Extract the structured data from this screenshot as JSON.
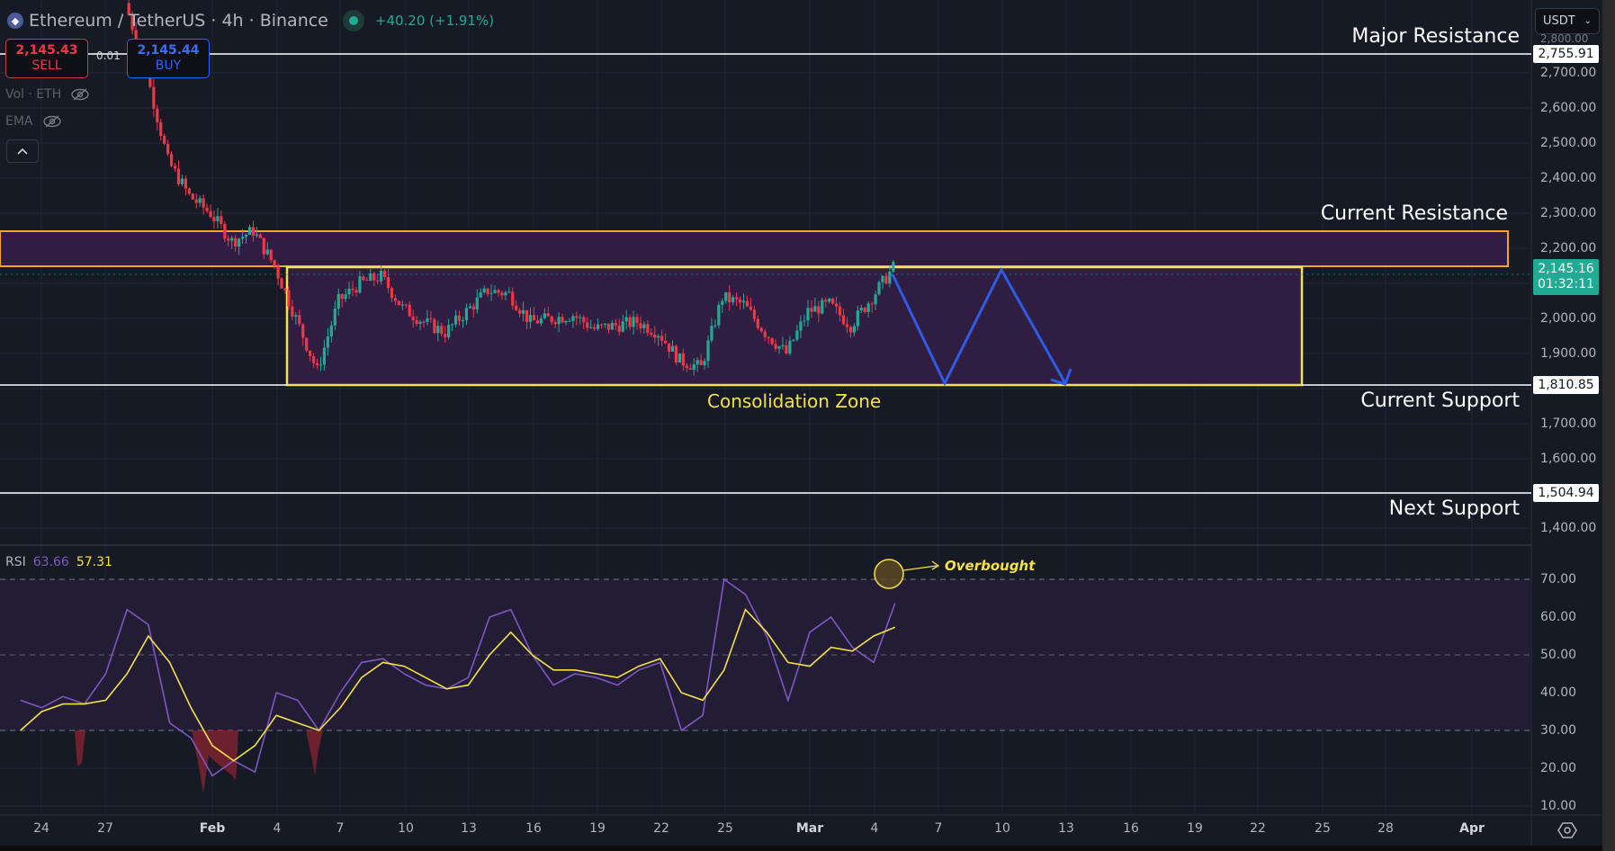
{
  "header": {
    "symbol": "Ethereum / TetherUS · 4h · Binance",
    "change": "+40.20 (+1.91%)",
    "market_status": "open"
  },
  "trade": {
    "sell_price": "2,145.43",
    "sell_label": "SELL",
    "spread": "0.01",
    "buy_price": "2,145.44",
    "buy_label": "BUY"
  },
  "indicators": {
    "vol_label": "Vol · ETH",
    "ema_label": "EMA",
    "collapse_icon": "chevron-up-icon"
  },
  "currency": {
    "selected": "USDT"
  },
  "price_axis": {
    "ticks": [
      "2,700.00",
      "2,600.00",
      "2,500.00",
      "2,400.00",
      "2,300.00",
      "2,200.00",
      "2,000.00",
      "1,900.00",
      "1,700.00",
      "1,600.00",
      "1,400.00"
    ],
    "tags": {
      "major_resistance": "2,755.91",
      "current_support": "1,810.85",
      "next_support": "1,504.94"
    },
    "last_price": "2,145.16",
    "countdown": "01:32:11"
  },
  "annotations": {
    "major_resistance": "Major Resistance",
    "current_resistance": "Current Resistance",
    "current_support": "Current Support",
    "next_support": "Next Support",
    "consolidation": "Consolidation Zone",
    "overbought": "Overbought"
  },
  "rsi": {
    "label": "RSI",
    "value": "63.66",
    "ma_value": "57.31",
    "ticks": [
      "70.00",
      "60.00",
      "50.00",
      "40.00",
      "30.00",
      "20.00",
      "10.00"
    ]
  },
  "time_axis": {
    "labels": [
      "24",
      "27",
      "Feb",
      "4",
      "7",
      "10",
      "13",
      "16",
      "19",
      "22",
      "25",
      "Mar",
      "4",
      "7",
      "10",
      "13",
      "16",
      "19",
      "22",
      "25",
      "28",
      "Apr"
    ]
  },
  "colors": {
    "background": "#161a25",
    "up": "#22ab94",
    "down": "#f23645",
    "rsi_line": "#7e57c2",
    "rsi_ma": "#f5e14a",
    "resistance_zone_border": "#f5a623",
    "consolidation_border": "#f5e14a",
    "zone_fill": "#311d44",
    "projection": "#2e5ce6"
  },
  "chart_data": [
    {
      "type": "candlestick",
      "title": "Ethereum / TetherUS · 4h · Binance",
      "xlabel": "",
      "ylabel": "USDT",
      "x_ticks": [
        "24",
        "27",
        "Feb",
        "4",
        "7",
        "10",
        "13",
        "16",
        "19",
        "22",
        "25",
        "Mar",
        "4",
        "7",
        "10",
        "13",
        "16",
        "19",
        "22",
        "25",
        "28",
        "Apr"
      ],
      "ylim": [
        1350,
        2800
      ],
      "last_price": 2145.16,
      "approx_path": [
        {
          "date": "Jan 28",
          "close": 2900
        },
        {
          "date": "Jan 29",
          "close": 2700
        },
        {
          "date": "Jan 30",
          "close": 2450
        },
        {
          "date": "Jan 31",
          "close": 2350
        },
        {
          "date": "Feb 1",
          "close": 2300
        },
        {
          "date": "Feb 2",
          "close": 2220
        },
        {
          "date": "Feb 3",
          "close": 2250
        },
        {
          "date": "Feb 4",
          "close": 2150
        },
        {
          "date": "Feb 5",
          "close": 2000
        },
        {
          "date": "Feb 6",
          "close": 1850
        },
        {
          "date": "Feb 7",
          "close": 2050
        },
        {
          "date": "Feb 8",
          "close": 2100
        },
        {
          "date": "Feb 9",
          "close": 2120
        },
        {
          "date": "Feb 10",
          "close": 2030
        },
        {
          "date": "Feb 11",
          "close": 1990
        },
        {
          "date": "Feb 12",
          "close": 1960
        },
        {
          "date": "Feb 13",
          "close": 2020
        },
        {
          "date": "Feb 14",
          "close": 2080
        },
        {
          "date": "Feb 15",
          "close": 2070
        },
        {
          "date": "Feb 16",
          "close": 1990
        },
        {
          "date": "Feb 17",
          "close": 2000
        },
        {
          "date": "Feb 18",
          "close": 2010
        },
        {
          "date": "Feb 19",
          "close": 1970
        },
        {
          "date": "Feb 20",
          "close": 1980
        },
        {
          "date": "Feb 21",
          "close": 1990
        },
        {
          "date": "Feb 22",
          "close": 1960
        },
        {
          "date": "Feb 23",
          "close": 1880
        },
        {
          "date": "Feb 24",
          "close": 1860
        },
        {
          "date": "Feb 25",
          "close": 2060
        },
        {
          "date": "Feb 26",
          "close": 2040
        },
        {
          "date": "Feb 27",
          "close": 1960
        },
        {
          "date": "Feb 28",
          "close": 1900
        },
        {
          "date": "Mar 1",
          "close": 2020
        },
        {
          "date": "Mar 2",
          "close": 2040
        },
        {
          "date": "Mar 3",
          "close": 1980
        },
        {
          "date": "Mar 4",
          "close": 2060
        },
        {
          "date": "Mar 5",
          "close": 2145
        }
      ],
      "levels": [
        {
          "name": "Major Resistance",
          "price": 2755.91
        },
        {
          "name": "Current Resistance zone",
          "from": 2150,
          "to": 2250
        },
        {
          "name": "Consolidation Zone",
          "from": 1810.85,
          "to": 2150
        },
        {
          "name": "Current Support",
          "price": 1810.85
        },
        {
          "name": "Next Support",
          "price": 1504.94
        }
      ],
      "projection": [
        {
          "date": "Mar 5",
          "price": 2140
        },
        {
          "date": "Mar 7",
          "price": 1810
        },
        {
          "date": "Mar 10",
          "price": 2140
        },
        {
          "date": "Mar 13",
          "price": 1810
        }
      ]
    },
    {
      "type": "line",
      "title": "RSI",
      "ylim": [
        5,
        78
      ],
      "y_ticks": [
        70,
        60,
        50,
        40,
        30,
        20,
        10
      ],
      "bands": {
        "upper": 70,
        "middle": 50,
        "lower": 30
      },
      "series": [
        {
          "name": "RSI",
          "last": 63.66,
          "x": [
            "Jan 23",
            "Jan 24",
            "Jan 25",
            "Jan 26",
            "Jan 27",
            "Jan 28",
            "Jan 29",
            "Jan 30",
            "Jan 31",
            "Feb 1",
            "Feb 2",
            "Feb 3",
            "Feb 4",
            "Feb 5",
            "Feb 6",
            "Feb 7",
            "Feb 8",
            "Feb 9",
            "Feb 10",
            "Feb 11",
            "Feb 12",
            "Feb 13",
            "Feb 14",
            "Feb 15",
            "Feb 16",
            "Feb 17",
            "Feb 18",
            "Feb 19",
            "Feb 20",
            "Feb 21",
            "Feb 22",
            "Feb 23",
            "Feb 24",
            "Feb 25",
            "Feb 26",
            "Feb 27",
            "Feb 28",
            "Mar 1",
            "Mar 2",
            "Mar 3",
            "Mar 4",
            "Mar 5"
          ],
          "values": [
            38,
            36,
            39,
            37,
            45,
            62,
            58,
            32,
            28,
            18,
            22,
            19,
            40,
            38,
            30,
            40,
            48,
            49,
            45,
            42,
            41,
            44,
            60,
            62,
            50,
            42,
            45,
            44,
            42,
            46,
            48,
            30,
            34,
            70,
            66,
            55,
            38,
            56,
            60,
            52,
            48,
            63.66
          ]
        },
        {
          "name": "RSI-based MA",
          "last": 57.31,
          "values": [
            30,
            35,
            37,
            37,
            38,
            45,
            55,
            48,
            36,
            26,
            22,
            26,
            34,
            32,
            30,
            36,
            44,
            48,
            47,
            44,
            41,
            42,
            50,
            56,
            50,
            46,
            46,
            45,
            44,
            47,
            49,
            40,
            38,
            46,
            62,
            56,
            48,
            47,
            52,
            51,
            55,
            57.31
          ]
        }
      ]
    }
  ]
}
